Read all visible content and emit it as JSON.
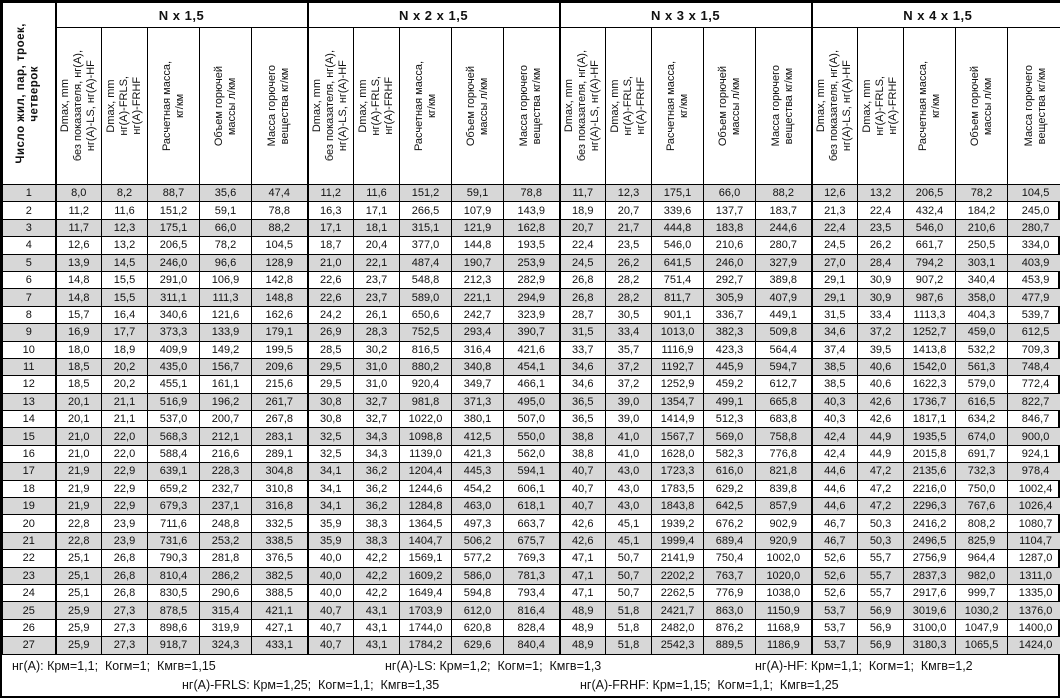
{
  "table": {
    "row_header": "Число жил, пар, троек,\nчетверок",
    "groups": [
      {
        "title": "N x 1,5"
      },
      {
        "title": "N x 2 x 1,5"
      },
      {
        "title": "N x 3 x 1,5"
      },
      {
        "title": "N x 4 x 1,5"
      }
    ],
    "subheaders": [
      "Dmax, mm\nбез показателя, нг(A),\nнг(A)-LS, нг(A)-HF",
      "Dmax, mm\nнг(A)-FRLS,\nнг(A)-FRHF",
      "Расчетная масса,\nкг/км",
      "Объем горючей\nмассы л/км",
      "Масса горючего\nвещества кг/км"
    ],
    "rows": [
      {
        "n": "1",
        "values": [
          "8,0",
          "8,2",
          "88,7",
          "35,6",
          "47,4",
          "11,2",
          "11,6",
          "151,2",
          "59,1",
          "78,8",
          "11,7",
          "12,3",
          "175,1",
          "66,0",
          "88,2",
          "12,6",
          "13,2",
          "206,5",
          "78,2",
          "104,5"
        ]
      },
      {
        "n": "2",
        "values": [
          "11,2",
          "11,6",
          "151,2",
          "59,1",
          "78,8",
          "16,3",
          "17,1",
          "266,5",
          "107,9",
          "143,9",
          "18,9",
          "20,7",
          "339,6",
          "137,7",
          "183,7",
          "21,3",
          "22,4",
          "432,4",
          "184,2",
          "245,0"
        ]
      },
      {
        "n": "3",
        "values": [
          "11,7",
          "12,3",
          "175,1",
          "66,0",
          "88,2",
          "17,1",
          "18,1",
          "315,1",
          "121,9",
          "162,8",
          "20,7",
          "21,7",
          "444,8",
          "183,8",
          "244,6",
          "22,4",
          "23,5",
          "546,0",
          "210,6",
          "280,7"
        ]
      },
      {
        "n": "4",
        "values": [
          "12,6",
          "13,2",
          "206,5",
          "78,2",
          "104,5",
          "18,7",
          "20,4",
          "377,0",
          "144,8",
          "193,5",
          "22,4",
          "23,5",
          "546,0",
          "210,6",
          "280,7",
          "24,5",
          "26,2",
          "661,7",
          "250,5",
          "334,0"
        ]
      },
      {
        "n": "5",
        "values": [
          "13,9",
          "14,5",
          "246,0",
          "96,6",
          "128,9",
          "21,0",
          "22,1",
          "487,4",
          "190,7",
          "253,9",
          "24,5",
          "26,2",
          "641,5",
          "246,0",
          "327,9",
          "27,0",
          "28,4",
          "794,2",
          "303,1",
          "403,9"
        ]
      },
      {
        "n": "6",
        "values": [
          "14,8",
          "15,5",
          "291,0",
          "106,9",
          "142,8",
          "22,6",
          "23,7",
          "548,8",
          "212,3",
          "282,9",
          "26,8",
          "28,2",
          "751,4",
          "292,7",
          "389,8",
          "29,1",
          "30,9",
          "907,2",
          "340,4",
          "453,9"
        ]
      },
      {
        "n": "7",
        "values": [
          "14,8",
          "15,5",
          "311,1",
          "111,3",
          "148,8",
          "22,6",
          "23,7",
          "589,0",
          "221,1",
          "294,9",
          "26,8",
          "28,2",
          "811,7",
          "305,9",
          "407,9",
          "29,1",
          "30,9",
          "987,6",
          "358,0",
          "477,9"
        ]
      },
      {
        "n": "8",
        "values": [
          "15,7",
          "16,4",
          "340,6",
          "121,6",
          "162,6",
          "24,2",
          "26,1",
          "650,6",
          "242,7",
          "323,9",
          "28,7",
          "30,5",
          "901,1",
          "336,7",
          "449,1",
          "31,5",
          "33,4",
          "1113,3",
          "404,3",
          "539,7"
        ]
      },
      {
        "n": "9",
        "values": [
          "16,9",
          "17,7",
          "373,3",
          "133,9",
          "179,1",
          "26,9",
          "28,3",
          "752,5",
          "293,4",
          "390,7",
          "31,5",
          "33,4",
          "1013,0",
          "382,3",
          "509,8",
          "34,6",
          "37,2",
          "1252,7",
          "459,0",
          "612,5"
        ]
      },
      {
        "n": "10",
        "values": [
          "18,0",
          "18,9",
          "409,9",
          "149,2",
          "199,5",
          "28,5",
          "30,2",
          "816,5",
          "316,4",
          "421,6",
          "33,7",
          "35,7",
          "1116,9",
          "423,3",
          "564,4",
          "37,4",
          "39,5",
          "1413,8",
          "532,2",
          "709,3"
        ]
      },
      {
        "n": "11",
        "values": [
          "18,5",
          "20,2",
          "435,0",
          "156,7",
          "209,6",
          "29,5",
          "31,0",
          "880,2",
          "340,8",
          "454,1",
          "34,6",
          "37,2",
          "1192,7",
          "445,9",
          "594,7",
          "38,5",
          "40,6",
          "1542,0",
          "561,3",
          "748,4"
        ]
      },
      {
        "n": "12",
        "values": [
          "18,5",
          "20,2",
          "455,1",
          "161,1",
          "215,6",
          "29,5",
          "31,0",
          "920,4",
          "349,7",
          "466,1",
          "34,6",
          "37,2",
          "1252,9",
          "459,2",
          "612,7",
          "38,5",
          "40,6",
          "1622,3",
          "579,0",
          "772,4"
        ]
      },
      {
        "n": "13",
        "values": [
          "20,1",
          "21,1",
          "516,9",
          "196,2",
          "261,7",
          "30,8",
          "32,7",
          "981,8",
          "371,3",
          "495,0",
          "36,5",
          "39,0",
          "1354,7",
          "499,1",
          "665,8",
          "40,3",
          "42,6",
          "1736,7",
          "616,5",
          "822,7"
        ]
      },
      {
        "n": "14",
        "values": [
          "20,1",
          "21,1",
          "537,0",
          "200,7",
          "267,8",
          "30,8",
          "32,7",
          "1022,0",
          "380,1",
          "507,0",
          "36,5",
          "39,0",
          "1414,9",
          "512,3",
          "683,8",
          "40,3",
          "42,6",
          "1817,1",
          "634,2",
          "846,7"
        ]
      },
      {
        "n": "15",
        "values": [
          "21,0",
          "22,0",
          "568,3",
          "212,1",
          "283,1",
          "32,5",
          "34,3",
          "1098,8",
          "412,5",
          "550,0",
          "38,8",
          "41,0",
          "1567,7",
          "569,0",
          "758,8",
          "42,4",
          "44,9",
          "1935,5",
          "674,0",
          "900,0"
        ]
      },
      {
        "n": "16",
        "values": [
          "21,0",
          "22,0",
          "588,4",
          "216,6",
          "289,1",
          "32,5",
          "34,3",
          "1139,0",
          "421,3",
          "562,0",
          "38,8",
          "41,0",
          "1628,0",
          "582,3",
          "776,8",
          "42,4",
          "44,9",
          "2015,8",
          "691,7",
          "924,1"
        ]
      },
      {
        "n": "17",
        "values": [
          "21,9",
          "22,9",
          "639,1",
          "228,3",
          "304,8",
          "34,1",
          "36,2",
          "1204,4",
          "445,3",
          "594,1",
          "40,7",
          "43,0",
          "1723,3",
          "616,0",
          "821,8",
          "44,6",
          "47,2",
          "2135,6",
          "732,3",
          "978,4"
        ]
      },
      {
        "n": "18",
        "values": [
          "21,9",
          "22,9",
          "659,2",
          "232,7",
          "310,8",
          "34,1",
          "36,2",
          "1244,6",
          "454,2",
          "606,1",
          "40,7",
          "43,0",
          "1783,5",
          "629,2",
          "839,8",
          "44,6",
          "47,2",
          "2216,0",
          "750,0",
          "1002,4"
        ]
      },
      {
        "n": "19",
        "values": [
          "21,9",
          "22,9",
          "679,3",
          "237,1",
          "316,8",
          "34,1",
          "36,2",
          "1284,8",
          "463,0",
          "618,1",
          "40,7",
          "43,0",
          "1843,8",
          "642,5",
          "857,9",
          "44,6",
          "47,2",
          "2296,3",
          "767,6",
          "1026,4"
        ]
      },
      {
        "n": "20",
        "values": [
          "22,8",
          "23,9",
          "711,6",
          "248,8",
          "332,5",
          "35,9",
          "38,3",
          "1364,5",
          "497,3",
          "663,7",
          "42,6",
          "45,1",
          "1939,2",
          "676,2",
          "902,9",
          "46,7",
          "50,3",
          "2416,2",
          "808,2",
          "1080,7"
        ]
      },
      {
        "n": "21",
        "values": [
          "22,8",
          "23,9",
          "731,6",
          "253,2",
          "338,5",
          "35,9",
          "38,3",
          "1404,7",
          "506,2",
          "675,7",
          "42,6",
          "45,1",
          "1999,4",
          "689,4",
          "920,9",
          "46,7",
          "50,3",
          "2496,5",
          "825,9",
          "1104,7"
        ]
      },
      {
        "n": "22",
        "values": [
          "25,1",
          "26,8",
          "790,3",
          "281,8",
          "376,5",
          "40,0",
          "42,2",
          "1569,1",
          "577,2",
          "769,3",
          "47,1",
          "50,7",
          "2141,9",
          "750,4",
          "1002,0",
          "52,6",
          "55,7",
          "2756,9",
          "964,4",
          "1287,0"
        ]
      },
      {
        "n": "23",
        "values": [
          "25,1",
          "26,8",
          "810,4",
          "286,2",
          "382,5",
          "40,0",
          "42,2",
          "1609,2",
          "586,0",
          "781,3",
          "47,1",
          "50,7",
          "2202,2",
          "763,7",
          "1020,0",
          "52,6",
          "55,7",
          "2837,3",
          "982,0",
          "1311,0"
        ]
      },
      {
        "n": "24",
        "values": [
          "25,1",
          "26,8",
          "830,5",
          "290,6",
          "388,5",
          "40,0",
          "42,2",
          "1649,4",
          "594,8",
          "793,4",
          "47,1",
          "50,7",
          "2262,5",
          "776,9",
          "1038,0",
          "52,6",
          "55,7",
          "2917,6",
          "999,7",
          "1335,0"
        ]
      },
      {
        "n": "25",
        "values": [
          "25,9",
          "27,3",
          "878,5",
          "315,4",
          "421,1",
          "40,7",
          "43,1",
          "1703,9",
          "612,0",
          "816,4",
          "48,9",
          "51,8",
          "2421,7",
          "863,0",
          "1150,9",
          "53,7",
          "56,9",
          "3019,6",
          "1030,2",
          "1376,0"
        ]
      },
      {
        "n": "26",
        "values": [
          "25,9",
          "27,3",
          "898,6",
          "319,9",
          "427,1",
          "40,7",
          "43,1",
          "1744,0",
          "620,8",
          "828,4",
          "48,9",
          "51,8",
          "2482,0",
          "876,2",
          "1168,9",
          "53,7",
          "56,9",
          "3100,0",
          "1047,9",
          "1400,0"
        ]
      },
      {
        "n": "27",
        "values": [
          "25,9",
          "27,3",
          "918,7",
          "324,3",
          "433,1",
          "40,7",
          "43,1",
          "1784,2",
          "629,6",
          "840,4",
          "48,9",
          "51,8",
          "2542,3",
          "889,5",
          "1186,9",
          "53,7",
          "56,9",
          "3180,3",
          "1065,5",
          "1424,0"
        ]
      }
    ]
  },
  "footer": {
    "line1": [
      "нг(A): Крм=1,1;  Когм=1;  Кмгв=1,15",
      "нг(A)-LS: Крм=1,2;  Когм=1;  Кмгв=1,3",
      "нг(A)-HF: Крм=1,1;  Когм=1;  Кмгв=1,2"
    ],
    "line2": [
      "нг(A)-FRLS: Крм=1,25;  Когм=1,1;  Кмгв=1,35",
      "нг(A)-FRHF: Крм=1,15;  Когм=1,1;  Кмгв=1,25"
    ]
  },
  "colors": {
    "row_shade": "#d7d7d7",
    "border": "#000000",
    "background": "#ffffff"
  }
}
